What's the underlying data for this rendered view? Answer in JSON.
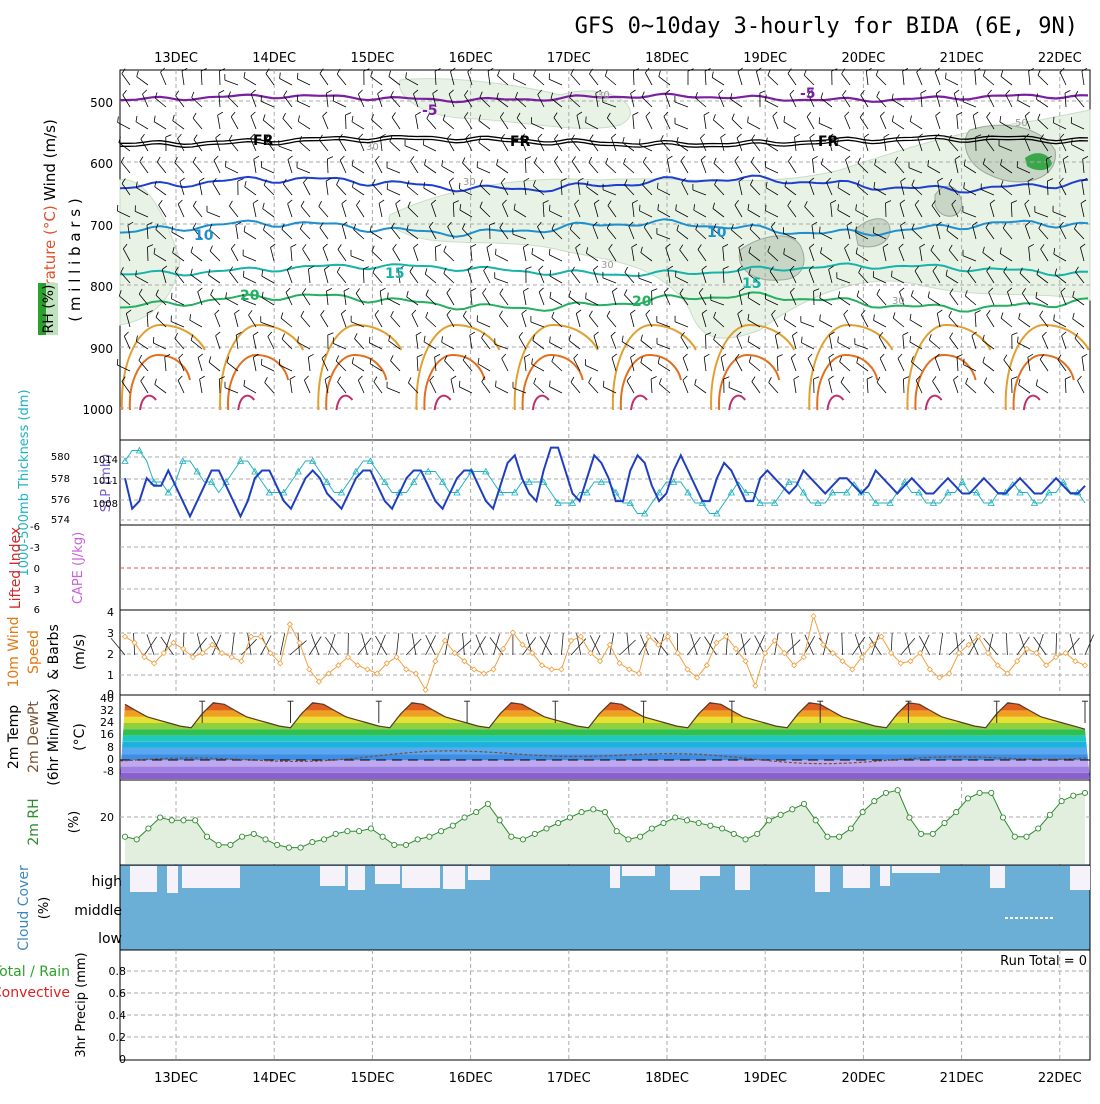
{
  "title": "GFS 0~10day 3-hourly for BIDA (6E, 9N)",
  "dates": [
    "13DEC",
    "14DEC",
    "15DEC",
    "16DEC",
    "17DEC",
    "18DEC",
    "19DEC",
    "20DEC",
    "21DEC",
    "22DEC"
  ],
  "colors": {
    "wind_label": "#000000",
    "temperature_label": "#e0502a",
    "rh_badge": "#2ca02c",
    "slp_line": "#1f3fbf",
    "thickness_line": "#20b2c0",
    "lifted_label": "#d62828",
    "cape_label": "#c864d8",
    "wind10m_label": "#e07a10",
    "wind_speed_line": "#f0a040",
    "rh2m_line": "#2e8b2e",
    "cloud_fill": "#6baed6",
    "precip_total": "#2ca02c",
    "precip_conv": "#e02020"
  },
  "panels": {
    "profile": {
      "label_wind": "Wind (m/s)",
      "label_temperature": "Temperature (°C)",
      "label_rh": "RH (%)",
      "label_pressure": "( m i l l i b a r s )",
      "levels": [
        "500",
        "600",
        "700",
        "800",
        "900",
        "1000"
      ],
      "contour_labels": [
        "-5",
        "-5",
        "FR",
        "FR",
        "FR",
        "10",
        "10",
        "15",
        "15",
        "20",
        "20",
        "30",
        "30",
        "30",
        "30",
        "30",
        "50"
      ]
    },
    "pressure": {
      "label_thickness": "1000-500mb Thickness (dm)",
      "label_slp": "SLP (mb)",
      "thickness_ticks": [
        "580",
        "578",
        "576",
        "574"
      ],
      "slp_ticks": [
        "1014",
        "1011",
        "1008"
      ]
    },
    "stability": {
      "label_lifted": "Lifted Index",
      "label_cape": "CAPE (J/kg)",
      "ticks": [
        "-6",
        "-3",
        "0",
        "3",
        "6"
      ]
    },
    "wind10m": {
      "label_1": "10m Wind",
      "label_2": "Speed",
      "label_3": "& Barbs",
      "label_unit": "(m/s)",
      "ticks": [
        "4",
        "3",
        "2",
        "1",
        "0"
      ]
    },
    "temp2m": {
      "label_1": "2m Temp",
      "label_2": "2m DewPt",
      "label_3": "(6hr Min/Max)",
      "label_unit": "(°C)",
      "ticks": [
        "40",
        "32",
        "24",
        "16",
        "8",
        "0",
        "-8"
      ]
    },
    "rh2m": {
      "label": "2m RH",
      "label_unit": "(%)",
      "ticks": [
        "20"
      ]
    },
    "cloud": {
      "label": "Cloud Cover",
      "label_unit": "(%)",
      "rows": [
        "high",
        "middle",
        "low"
      ]
    },
    "precip": {
      "label_total": "Total / Rain",
      "label_conv": "Convective",
      "label_axis": "3hr Precip (mm)",
      "run_total": "Run Total = 0",
      "ticks": [
        "0.8",
        "0.6",
        "0.4",
        "0.2",
        "0"
      ]
    }
  },
  "chart_data": [
    {
      "type": "line",
      "name": "1000-500mb Thickness (dm)",
      "x_start": "12DEC 12Z",
      "x_step_hours": 3,
      "ylim": [
        573,
        581
      ],
      "values": [
        579,
        580,
        580,
        579,
        577,
        577,
        576,
        577,
        579,
        579,
        578,
        577,
        577,
        576,
        577,
        578,
        579,
        579,
        578,
        577,
        576,
        576,
        576,
        577,
        578,
        579,
        579,
        578,
        577,
        576,
        576,
        577,
        578,
        579,
        579,
        578,
        577,
        576,
        576,
        576,
        577,
        578,
        578,
        578,
        577,
        576,
        576,
        577,
        578,
        578,
        578,
        577,
        576,
        576,
        576,
        577,
        577,
        577,
        577,
        576,
        575,
        575,
        575,
        576,
        576,
        577,
        577,
        577,
        576,
        575,
        575,
        574,
        574,
        575,
        576,
        577,
        577,
        577,
        576,
        575,
        575,
        574,
        574,
        575,
        576,
        577,
        576,
        576,
        575,
        575,
        575,
        576,
        577,
        577,
        576,
        575,
        575,
        575,
        576,
        576,
        576,
        577,
        576,
        576,
        575,
        575,
        575,
        576,
        577,
        576,
        576,
        575,
        575,
        575,
        576,
        576,
        577,
        576,
        576,
        575,
        575,
        576,
        576,
        577,
        576,
        576,
        575,
        575,
        576,
        576,
        577,
        576,
        576,
        575
      ]
    },
    {
      "type": "line",
      "name": "SLP (mb)",
      "x_start": "12DEC 12Z",
      "x_step_hours": 3,
      "ylim": [
        1005,
        1016
      ],
      "values": [
        1011,
        1007,
        1008,
        1011,
        1010,
        1010,
        1012,
        1010,
        1008,
        1006,
        1008,
        1010,
        1012,
        1012,
        1010,
        1008,
        1006,
        1008,
        1011,
        1012,
        1012,
        1010,
        1008,
        1007,
        1009,
        1011,
        1012,
        1011,
        1009,
        1008,
        1007,
        1009,
        1011,
        1012,
        1012,
        1010,
        1008,
        1007,
        1009,
        1011,
        1012,
        1012,
        1010,
        1008,
        1007,
        1009,
        1011,
        1012,
        1012,
        1010,
        1008,
        1007,
        1010,
        1013,
        1014,
        1011,
        1009,
        1008,
        1012,
        1015,
        1015,
        1012,
        1009,
        1008,
        1011,
        1014,
        1013,
        1011,
        1008,
        1008,
        1012,
        1014,
        1013,
        1010,
        1008,
        1009,
        1012,
        1014,
        1012,
        1010,
        1008,
        1008,
        1011,
        1013,
        1012,
        1010,
        1008,
        1008,
        1011,
        1012,
        1011,
        1010,
        1009,
        1010,
        1012,
        1011,
        1010,
        1009,
        1010,
        1011,
        1011,
        1010,
        1009,
        1010,
        1012,
        1011,
        1010,
        1009,
        1010,
        1011,
        1010,
        1009,
        1009,
        1010,
        1011,
        1010,
        1009,
        1009,
        1010,
        1011,
        1010,
        1009,
        1009,
        1010,
        1011,
        1010,
        1009,
        1009,
        1010,
        1011,
        1010,
        1009,
        1009,
        1010
      ]
    },
    {
      "type": "line",
      "name": "10m Wind Speed (m/s)",
      "x_start": "12DEC 12Z",
      "x_step_hours": 3,
      "ylim": [
        0,
        4
      ],
      "values": [
        2.8,
        2.5,
        1.8,
        1.5,
        2.0,
        2.5,
        2.2,
        1.8,
        2.0,
        2.4,
        2.0,
        1.8,
        1.6,
        2.8,
        2.8,
        2.0,
        1.5,
        3.4,
        2.5,
        1.2,
        0.6,
        1.0,
        1.4,
        1.8,
        1.4,
        1.2,
        1.0,
        1.5,
        1.8,
        1.2,
        1.0,
        0.2,
        1.6,
        2.6,
        2.0,
        1.6,
        1.2,
        1.0,
        1.2,
        2.2,
        3.0,
        2.4,
        2.0,
        1.4,
        1.2,
        1.2,
        2.6,
        2.8,
        2.0,
        1.6,
        2.4,
        1.5,
        1.2,
        1.0,
        2.8,
        2.4,
        2.8,
        2.0,
        1.2,
        0.8,
        1.4,
        2.5,
        2.8,
        2.2,
        1.6,
        0.4,
        2.0,
        2.6,
        2.0,
        1.4,
        1.8,
        3.8,
        2.4,
        2.0,
        1.6,
        1.2,
        1.8,
        2.4,
        2.8,
        2.0,
        1.5,
        1.6,
        2.0,
        1.2,
        0.8,
        1.0,
        2.0,
        2.4,
        2.8,
        2.0,
        1.4,
        1.0,
        1.6,
        2.2,
        2.0,
        1.4,
        1.8,
        2.0,
        1.6,
        1.4
      ]
    },
    {
      "type": "line",
      "name": "2m Temp (°C)",
      "x_start": "12DEC 12Z",
      "x_step_hours": 3,
      "ylim": [
        -12,
        42
      ],
      "values": [
        36,
        32,
        28,
        26,
        24,
        22,
        21,
        30,
        37,
        36,
        32,
        28,
        26,
        24,
        22,
        21,
        30,
        37,
        36,
        32,
        28,
        26,
        24,
        22,
        21,
        30,
        37,
        36,
        32,
        28,
        26,
        24,
        22,
        21,
        30,
        37,
        36,
        32,
        28,
        26,
        24,
        22,
        21,
        30,
        37,
        36,
        32,
        28,
        26,
        24,
        22,
        21,
        30,
        37,
        36,
        32,
        28,
        26,
        24,
        22,
        21,
        30,
        37,
        36,
        32,
        28,
        26,
        24,
        22,
        21,
        30,
        37,
        36,
        32,
        28,
        26,
        24,
        22,
        21,
        30,
        37,
        36,
        32,
        28,
        26,
        24,
        22,
        20
      ]
    },
    {
      "type": "line",
      "name": "2m RH (%)",
      "x_start": "12DEC 12Z",
      "x_step_hours": 3,
      "ylim": [
        5,
        35
      ],
      "values": [
        15,
        14,
        18,
        22,
        21,
        21,
        21,
        15,
        12,
        12,
        15,
        16,
        14,
        12,
        11,
        11,
        13,
        14,
        16,
        17,
        17,
        18,
        15,
        12,
        12,
        14,
        15,
        17,
        19,
        22,
        24,
        27,
        21,
        15,
        14,
        16,
        18,
        20,
        22,
        24,
        25,
        24,
        17,
        14,
        15,
        18,
        20,
        22,
        21,
        20,
        19,
        18,
        16,
        14,
        16,
        21,
        23,
        25,
        27,
        21,
        15,
        15,
        18,
        24,
        28,
        31,
        32,
        22,
        16,
        16,
        20,
        24,
        29,
        31,
        31,
        22,
        15,
        15,
        18,
        23,
        28,
        30,
        31
      ]
    },
    {
      "type": "bar",
      "name": "3hr Precip (mm)",
      "ylim": [
        0,
        0.9
      ],
      "values": [],
      "run_total": 0
    }
  ]
}
